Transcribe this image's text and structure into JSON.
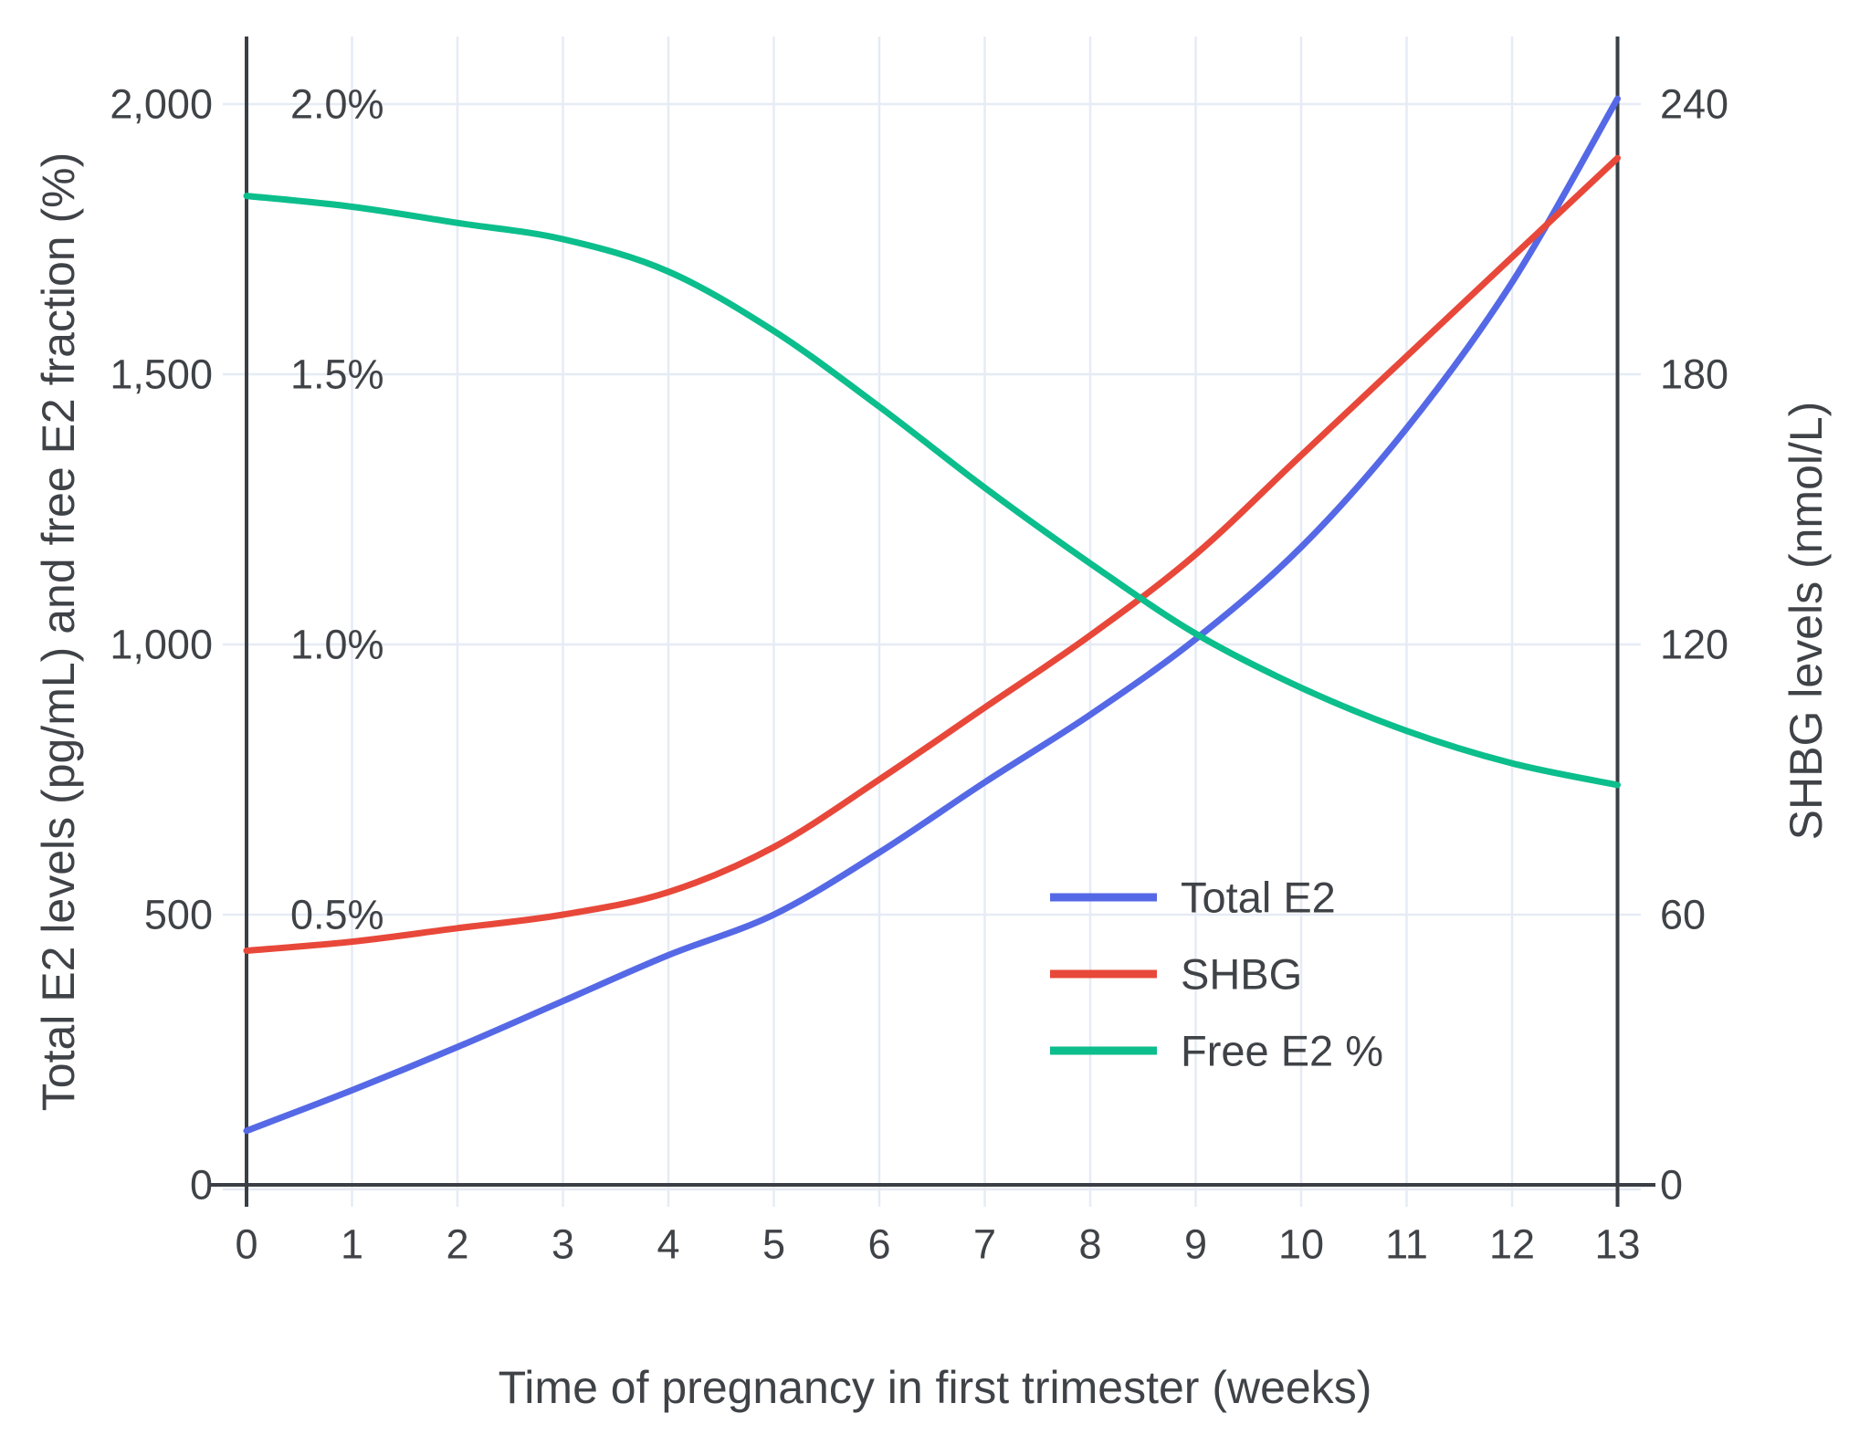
{
  "chart_data": {
    "type": "line",
    "title": "",
    "xlabel": "Time of pregnancy in first trimester (weeks)",
    "ylabel_left": "Total E2 levels (pg/mL) and free E2 fraction (%)",
    "ylabel_right": "SHBG levels (nmol/L)",
    "x": [
      0,
      1,
      2,
      3,
      4,
      5,
      6,
      7,
      8,
      9,
      10,
      11,
      12,
      13
    ],
    "x_tick_labels": [
      "0",
      "1",
      "2",
      "3",
      "4",
      "5",
      "6",
      "7",
      "8",
      "9",
      "10",
      "11",
      "12",
      "13"
    ],
    "y_left": {
      "range": [
        0,
        2000
      ],
      "tick_values": [
        0,
        500,
        1000,
        1500,
        2000
      ],
      "tick_labels": [
        "0",
        "500",
        "1,000",
        "1,500",
        "2,000"
      ]
    },
    "y_left_percent": {
      "range": [
        0,
        2.0
      ],
      "tick_values": [
        0.5,
        1.0,
        1.5,
        2.0
      ],
      "tick_labels": [
        "0.5%",
        "1.0%",
        "1.5%",
        "2.0%"
      ]
    },
    "y_right": {
      "range": [
        0,
        240
      ],
      "tick_values": [
        0,
        60,
        120,
        180,
        240
      ],
      "tick_labels": [
        "0",
        "60",
        "120",
        "180",
        "240"
      ]
    },
    "grid": true,
    "legend_position": "inside-right",
    "series": [
      {
        "name": "Total E2",
        "axis": "left",
        "unit": "pg/mL",
        "color": "#5569e6",
        "values": [
          100,
          175,
          255,
          340,
          425,
          500,
          615,
          745,
          870,
          1010,
          1180,
          1400,
          1670,
          2010
        ]
      },
      {
        "name": "SHBG",
        "axis": "right",
        "unit": "nmol/L",
        "color": "#e8483a",
        "values": [
          52,
          54,
          57,
          60,
          65,
          75,
          90,
          106,
          122,
          140,
          162,
          184,
          206,
          228
        ]
      },
      {
        "name": "Free E2 %",
        "axis": "left_percent",
        "unit": "%",
        "color": "#0cbe8c",
        "values": [
          1.83,
          1.81,
          1.78,
          1.75,
          1.69,
          1.58,
          1.44,
          1.29,
          1.15,
          1.02,
          0.92,
          0.84,
          0.78,
          0.74
        ]
      }
    ],
    "colors": {
      "grid": "#e6ebf5",
      "axis": "#3a3f46",
      "text": "#3f4347"
    }
  }
}
